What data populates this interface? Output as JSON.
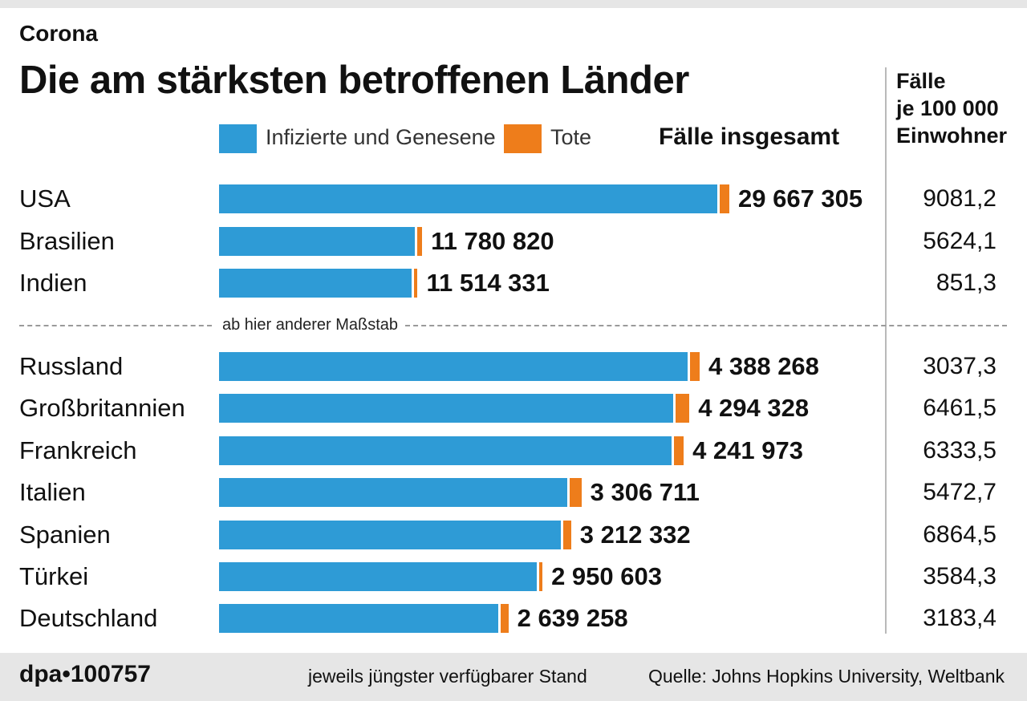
{
  "header": {
    "kicker": "Corona",
    "title": "Die am stärksten betroffenen Länder",
    "per_capita_heading": [
      "Fälle",
      "je 100 000",
      "Einwohner"
    ]
  },
  "legend": {
    "infected_label": "Infizierte und Genesene",
    "deaths_label": "Tote",
    "total_heading": "Fälle insgesamt"
  },
  "colors": {
    "infected": "#2e9bd6",
    "deaths": "#ee7d1b"
  },
  "scale_note": "ab hier anderer Maßstab",
  "footer": {
    "id": "dpa•100757",
    "stand": "jeweils jüngster verfügbarer Stand",
    "source": "Quelle: Johns Hopkins University, Weltbank"
  },
  "chart_data": {
    "type": "bar",
    "orientation": "horizontal",
    "stacked": true,
    "title": "Die am stärksten betroffenen Länder",
    "groups": [
      {
        "scale_note": "",
        "rows": [
          {
            "country": "USA",
            "total": 29667305,
            "total_label": "29 667 305",
            "deaths": 539000,
            "per100k": "9081,2"
          },
          {
            "country": "Brasilien",
            "total": 11780820,
            "total_label": "11 780 820",
            "deaths": 287000,
            "per100k": "5624,1"
          },
          {
            "country": "Indien",
            "total": 11514331,
            "total_label": "11 514 331",
            "deaths": 159000,
            "per100k": "851,3"
          }
        ]
      },
      {
        "scale_note": "ab hier anderer Maßstab",
        "rows": [
          {
            "country": "Russland",
            "total": 4388268,
            "total_label": "4 388 268",
            "deaths": 91000,
            "per100k": "3037,3"
          },
          {
            "country": "Großbritannien",
            "total": 4294328,
            "total_label": "4 294 328",
            "deaths": 126000,
            "per100k": "6461,5"
          },
          {
            "country": "Frankreich",
            "total": 4241973,
            "total_label": "4 241 973",
            "deaths": 92000,
            "per100k": "6333,5"
          },
          {
            "country": "Italien",
            "total": 3306711,
            "total_label": "3 306 711",
            "deaths": 104000,
            "per100k": "5472,7"
          },
          {
            "country": "Spanien",
            "total": 3212332,
            "total_label": "3 212 332",
            "deaths": 72000,
            "per100k": "6864,5"
          },
          {
            "country": "Türkei",
            "total": 2950603,
            "total_label": "2 950 603",
            "deaths": 30000,
            "per100k": "3584,3"
          },
          {
            "country": "Deutschland",
            "total": 2639258,
            "total_label": "2 639 258",
            "deaths": 74000,
            "per100k": "3183,4"
          }
        ]
      }
    ]
  }
}
